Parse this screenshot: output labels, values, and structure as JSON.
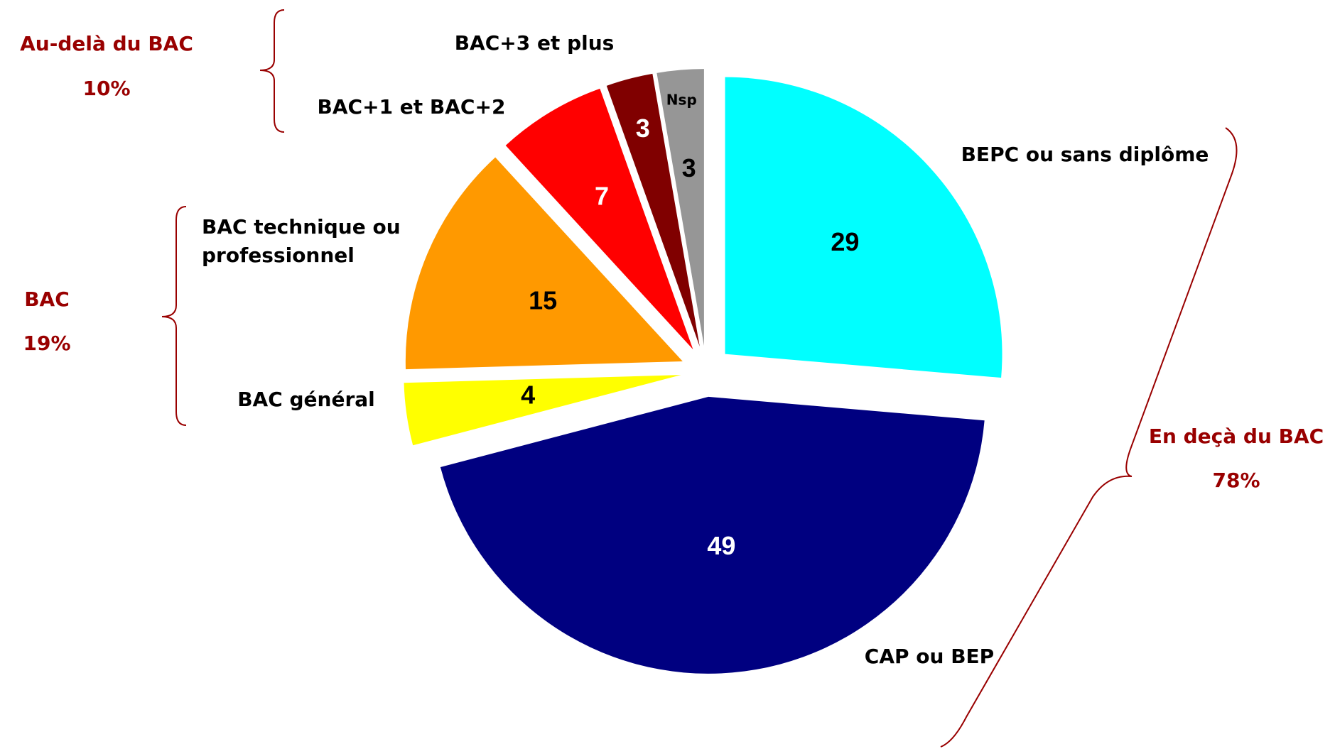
{
  "chart_data": {
    "type": "pie",
    "categories": [
      "BEPC ou sans diplôme",
      "CAP ou BEP",
      "BAC général",
      "BAC technique ou professionnel",
      "BAC+1 et BAC+2",
      "BAC+3 et plus",
      "Nsp"
    ],
    "values": [
      29,
      49,
      4,
      15,
      7,
      3,
      3
    ],
    "colors": [
      "#00ffff",
      "#000080",
      "#ffff00",
      "#ff9900",
      "#ff0000",
      "#800000",
      "#969696"
    ],
    "groups": {
      "names": [
        "Au-delà du BAC",
        "BAC",
        "En deçà du BAC"
      ],
      "values": [
        10,
        19,
        78
      ],
      "value_labels": [
        "10%",
        "19%",
        "78%"
      ]
    }
  }
}
